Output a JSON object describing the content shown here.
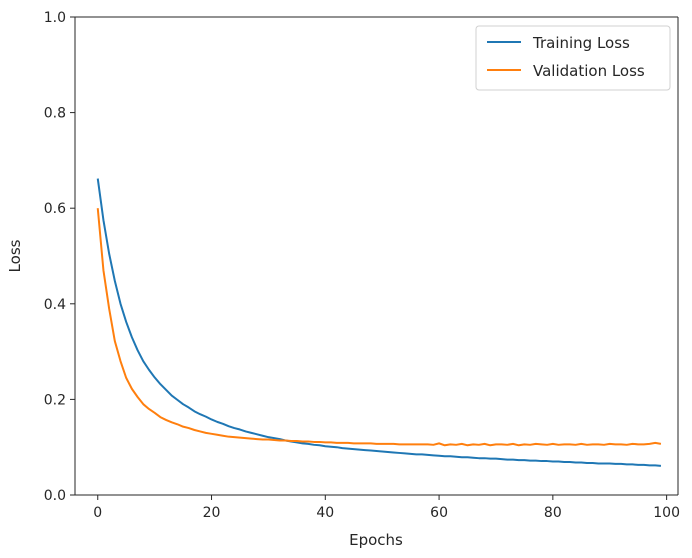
{
  "chart_data": {
    "type": "line",
    "title": "",
    "xlabel": "Epochs",
    "ylabel": "Loss",
    "xlim": [
      -4,
      102
    ],
    "ylim": [
      0,
      1.0
    ],
    "xticks": [
      0,
      20,
      40,
      60,
      80,
      100
    ],
    "yticks": [
      0.0,
      0.2,
      0.4,
      0.6,
      0.8,
      1.0
    ],
    "xtick_labels": [
      "0",
      "20",
      "40",
      "60",
      "80",
      "100"
    ],
    "ytick_labels": [
      "0.0",
      "0.2",
      "0.4",
      "0.6",
      "0.8",
      "1.0"
    ],
    "grid": false,
    "legend_position": "top-right",
    "x": [
      0,
      1,
      2,
      3,
      4,
      5,
      6,
      7,
      8,
      9,
      10,
      11,
      12,
      13,
      14,
      15,
      16,
      17,
      18,
      19,
      20,
      21,
      22,
      23,
      24,
      25,
      26,
      27,
      28,
      29,
      30,
      31,
      32,
      33,
      34,
      35,
      36,
      37,
      38,
      39,
      40,
      41,
      42,
      43,
      44,
      45,
      46,
      47,
      48,
      49,
      50,
      51,
      52,
      53,
      54,
      55,
      56,
      57,
      58,
      59,
      60,
      61,
      62,
      63,
      64,
      65,
      66,
      67,
      68,
      69,
      70,
      71,
      72,
      73,
      74,
      75,
      76,
      77,
      78,
      79,
      80,
      81,
      82,
      83,
      84,
      85,
      86,
      87,
      88,
      89,
      90,
      91,
      92,
      93,
      94,
      95,
      96,
      97,
      98,
      99
    ],
    "series": [
      {
        "name": "Training Loss",
        "color": "#1f77b4",
        "values": [
          0.662,
          0.575,
          0.505,
          0.448,
          0.4,
          0.362,
          0.33,
          0.303,
          0.28,
          0.262,
          0.246,
          0.232,
          0.22,
          0.208,
          0.199,
          0.19,
          0.183,
          0.175,
          0.169,
          0.164,
          0.158,
          0.153,
          0.149,
          0.144,
          0.14,
          0.137,
          0.133,
          0.13,
          0.127,
          0.124,
          0.121,
          0.119,
          0.117,
          0.114,
          0.112,
          0.11,
          0.108,
          0.107,
          0.105,
          0.104,
          0.102,
          0.101,
          0.1,
          0.098,
          0.097,
          0.096,
          0.095,
          0.094,
          0.093,
          0.092,
          0.091,
          0.09,
          0.089,
          0.088,
          0.087,
          0.086,
          0.085,
          0.085,
          0.084,
          0.083,
          0.082,
          0.081,
          0.081,
          0.08,
          0.079,
          0.079,
          0.078,
          0.077,
          0.077,
          0.076,
          0.076,
          0.075,
          0.074,
          0.074,
          0.073,
          0.073,
          0.072,
          0.072,
          0.071,
          0.071,
          0.07,
          0.07,
          0.069,
          0.069,
          0.068,
          0.068,
          0.067,
          0.067,
          0.066,
          0.066,
          0.066,
          0.065,
          0.065,
          0.064,
          0.064,
          0.063,
          0.063,
          0.062,
          0.062,
          0.061
        ]
      },
      {
        "name": "Validation Loss",
        "color": "#ff7f0e",
        "values": [
          0.6,
          0.47,
          0.39,
          0.322,
          0.28,
          0.245,
          0.222,
          0.205,
          0.19,
          0.18,
          0.172,
          0.163,
          0.157,
          0.152,
          0.148,
          0.143,
          0.14,
          0.136,
          0.133,
          0.13,
          0.128,
          0.126,
          0.124,
          0.122,
          0.121,
          0.12,
          0.119,
          0.118,
          0.117,
          0.116,
          0.116,
          0.115,
          0.114,
          0.114,
          0.113,
          0.113,
          0.112,
          0.112,
          0.111,
          0.111,
          0.11,
          0.11,
          0.109,
          0.109,
          0.109,
          0.108,
          0.108,
          0.108,
          0.108,
          0.107,
          0.107,
          0.107,
          0.107,
          0.106,
          0.106,
          0.106,
          0.106,
          0.106,
          0.106,
          0.105,
          0.108,
          0.104,
          0.106,
          0.105,
          0.107,
          0.104,
          0.106,
          0.105,
          0.107,
          0.104,
          0.106,
          0.106,
          0.105,
          0.107,
          0.104,
          0.106,
          0.105,
          0.107,
          0.106,
          0.105,
          0.107,
          0.105,
          0.106,
          0.106,
          0.105,
          0.107,
          0.105,
          0.106,
          0.106,
          0.105,
          0.107,
          0.106,
          0.106,
          0.105,
          0.107,
          0.106,
          0.106,
          0.107,
          0.109,
          0.107
        ]
      }
    ]
  }
}
